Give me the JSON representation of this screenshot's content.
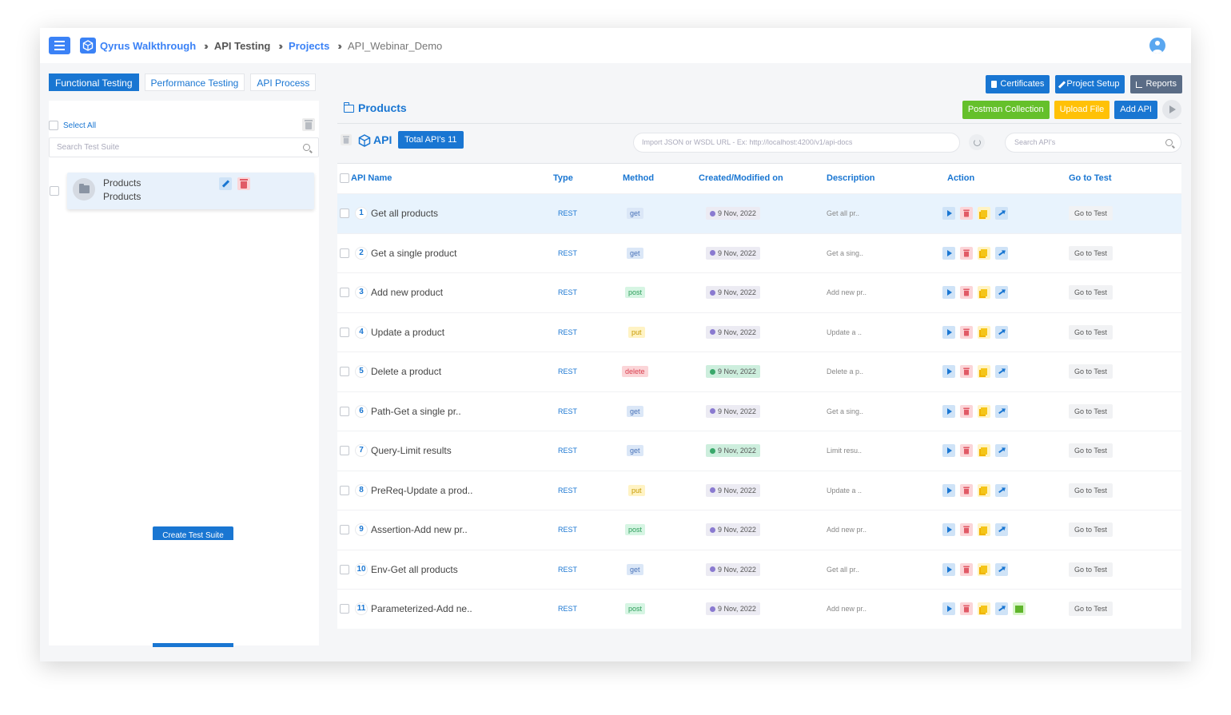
{
  "header": {
    "breadcrumbs": [
      "Qyrus Walkthrough",
      "API Testing",
      "Projects",
      "API_Webinar_Demo"
    ],
    "separator": "»"
  },
  "tabs": [
    {
      "label": "Functional Testing",
      "active": true
    },
    {
      "label": "Performance Testing",
      "active": false
    },
    {
      "label": "API Process",
      "active": false
    }
  ],
  "top_actions": {
    "certificates": "Certificates",
    "project_setup": "Project Setup",
    "reports": "Reports"
  },
  "left_panel": {
    "select_all": "Select All",
    "search_placeholder": "Search Test Suite",
    "suite": {
      "title": "Products",
      "subtitle": "Products"
    },
    "create_button": "Create Test Suite"
  },
  "main": {
    "folder_title": "Products",
    "postman": "Postman Collection",
    "upload": "Upload File",
    "add_api": "Add API",
    "api_label": "API",
    "total_badge": "Total API's 11",
    "import_placeholder": "Import JSON or WSDL URL - Ex: http://localhost:4200/v1/api-docs",
    "search_placeholder": "Search API's"
  },
  "table": {
    "headers": {
      "name": "API Name",
      "type": "Type",
      "method": "Method",
      "created": "Created/Modified on",
      "description": "Description",
      "action": "Action",
      "goto": "Go to Test"
    },
    "rows": [
      {
        "num": "1",
        "name": "Get all products",
        "type": "REST",
        "method": "get",
        "date": "9 Nov, 2022",
        "date_style": "purple",
        "desc": "Get all pr..",
        "extra": false
      },
      {
        "num": "2",
        "name": "Get a single product",
        "type": "REST",
        "method": "get",
        "date": "9 Nov, 2022",
        "date_style": "purple",
        "desc": "Get a sing..",
        "extra": false
      },
      {
        "num": "3",
        "name": "Add new product",
        "type": "REST",
        "method": "post",
        "date": "9 Nov, 2022",
        "date_style": "purple",
        "desc": "Add new pr..",
        "extra": false
      },
      {
        "num": "4",
        "name": "Update a product",
        "type": "REST",
        "method": "put",
        "date": "9 Nov, 2022",
        "date_style": "purple",
        "desc": "Update a ..",
        "extra": false
      },
      {
        "num": "5",
        "name": "Delete a product",
        "type": "REST",
        "method": "delete",
        "date": "9 Nov, 2022",
        "date_style": "green",
        "desc": "Delete a p..",
        "extra": false
      },
      {
        "num": "6",
        "name": "Path-Get a single pr..",
        "type": "REST",
        "method": "get",
        "date": "9 Nov, 2022",
        "date_style": "purple",
        "desc": "Get a sing..",
        "extra": false
      },
      {
        "num": "7",
        "name": "Query-Limit results",
        "type": "REST",
        "method": "get",
        "date": "9 Nov, 2022",
        "date_style": "green",
        "desc": "Limit resu..",
        "extra": false
      },
      {
        "num": "8",
        "name": "PreReq-Update a prod..",
        "type": "REST",
        "method": "put",
        "date": "9 Nov, 2022",
        "date_style": "purple",
        "desc": "Update a ..",
        "extra": false
      },
      {
        "num": "9",
        "name": "Assertion-Add new pr..",
        "type": "REST",
        "method": "post",
        "date": "9 Nov, 2022",
        "date_style": "purple",
        "desc": "Add new pr..",
        "extra": false
      },
      {
        "num": "10",
        "name": "Env-Get all products",
        "type": "REST",
        "method": "get",
        "date": "9 Nov, 2022",
        "date_style": "purple",
        "desc": "Get all pr..",
        "extra": false
      },
      {
        "num": "11",
        "name": "Parameterized-Add ne..",
        "type": "REST",
        "method": "post",
        "date": "9 Nov, 2022",
        "date_style": "purple",
        "desc": "Add new pr..",
        "extra": true
      }
    ],
    "goto_label": "Go to Test"
  },
  "colors": {
    "accent": "#1976d2",
    "get_bg": "#dbe7f7",
    "get_fg": "#4a73b8",
    "post_bg": "#d6f5e3",
    "post_fg": "#2e9e5b",
    "put_bg": "#fff3c4",
    "put_fg": "#c79a00",
    "delete_bg": "#fbd5d8",
    "delete_fg": "#d9404f",
    "date_purple_bg": "#ecebf3",
    "date_green_bg": "#cdeedd"
  }
}
